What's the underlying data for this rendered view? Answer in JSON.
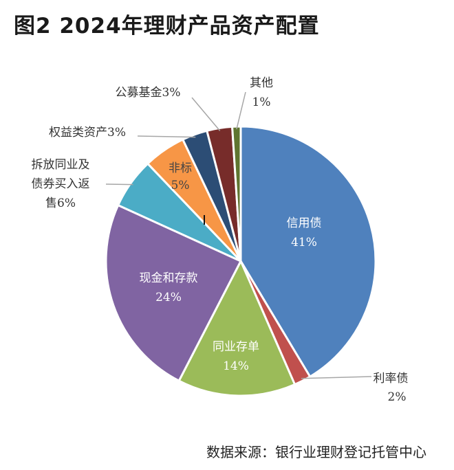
{
  "title": "图2  2024年理财产品资产配置",
  "source": "数据来源：银行业理财登记托管中心",
  "chart_data": {
    "type": "pie",
    "title": "图2  2024年理财产品资产配置",
    "start_angle_deg": 0,
    "direction": "clockwise",
    "slices": [
      {
        "label": "信用债",
        "value": 41,
        "value_text": "41%",
        "color": "#4F81BD",
        "label_lines": [
          "信用债"
        ],
        "inside": true
      },
      {
        "label": "利率债",
        "value": 2,
        "value_text": "2%",
        "color": "#C0504D",
        "label_lines": [
          "利率债"
        ],
        "inside": false
      },
      {
        "label": "同业存单",
        "value": 14,
        "value_text": "14%",
        "color": "#9BBB59",
        "label_lines": [
          "同业存单"
        ],
        "inside": true
      },
      {
        "label": "现金和存款",
        "value": 24,
        "value_text": "24%",
        "color": "#8064A2",
        "label_lines": [
          "现金和存款"
        ],
        "inside": true
      },
      {
        "label": "拆放同业及债券买入返售",
        "value": 6,
        "value_text": "6%",
        "color": "#4BACC6",
        "label_lines": [
          "拆放同业及",
          "债券买入返",
          "售6%"
        ],
        "inside": false
      },
      {
        "label": "非标",
        "value": 5,
        "value_text": "5%",
        "color": "#F79646",
        "label_lines": [
          "非标"
        ],
        "inside": true
      },
      {
        "label": "权益类资产",
        "value": 3,
        "value_text": "3%",
        "color": "#2C4D75",
        "label_lines": [
          "权益类资产3%"
        ],
        "inside": false
      },
      {
        "label": "公募基金",
        "value": 3,
        "value_text": "3%",
        "color": "#772C2A",
        "label_lines": [
          "公募基金3%"
        ],
        "inside": false
      },
      {
        "label": "其他",
        "value": 1,
        "value_text": "1%",
        "color": "#5F7530",
        "label_lines": [
          "其他"
        ],
        "inside": false
      }
    ]
  }
}
